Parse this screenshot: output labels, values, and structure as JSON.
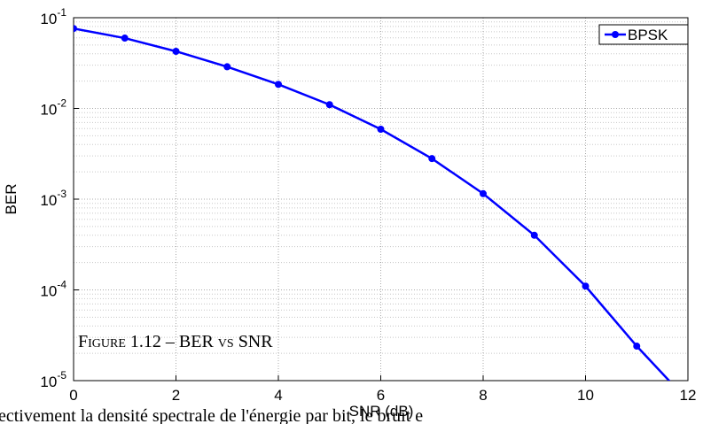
{
  "chart_data": {
    "type": "line",
    "xlabel": "SNR (dB)",
    "ylabel": "BER",
    "log_y": true,
    "grid": true,
    "minor_grid": true,
    "legend": "upper right",
    "x": [
      0,
      1,
      2,
      3,
      4,
      5,
      6,
      7,
      8,
      9,
      10,
      11,
      12
    ],
    "series": [
      {
        "name": "BPSK",
        "color": "#0000ff",
        "values": [
          0.076,
          0.0596,
          0.0426,
          0.0288,
          0.0184,
          0.011,
          0.0059,
          0.0028,
          0.00115,
          0.0004,
          0.00011,
          2.4e-05,
          6e-06
        ]
      }
    ],
    "xlim": [
      0,
      12
    ],
    "xticks": [
      0,
      2,
      4,
      6,
      8,
      10,
      12
    ],
    "ylim": [
      1e-05,
      0.1
    ],
    "yticks": [
      {
        "value": 0.1,
        "label": "10^-1"
      },
      {
        "value": 0.01,
        "label": "10^-2"
      },
      {
        "value": 0.001,
        "label": "10^-3"
      },
      {
        "value": 0.0001,
        "label": "10^-4"
      },
      {
        "value": 1e-05,
        "label": "10^-5"
      }
    ]
  },
  "caption": "Figure 1.12 – BER vs SNR",
  "body_text": "ectivement la densité spectrale de l'énergie par bit, le bruit e"
}
